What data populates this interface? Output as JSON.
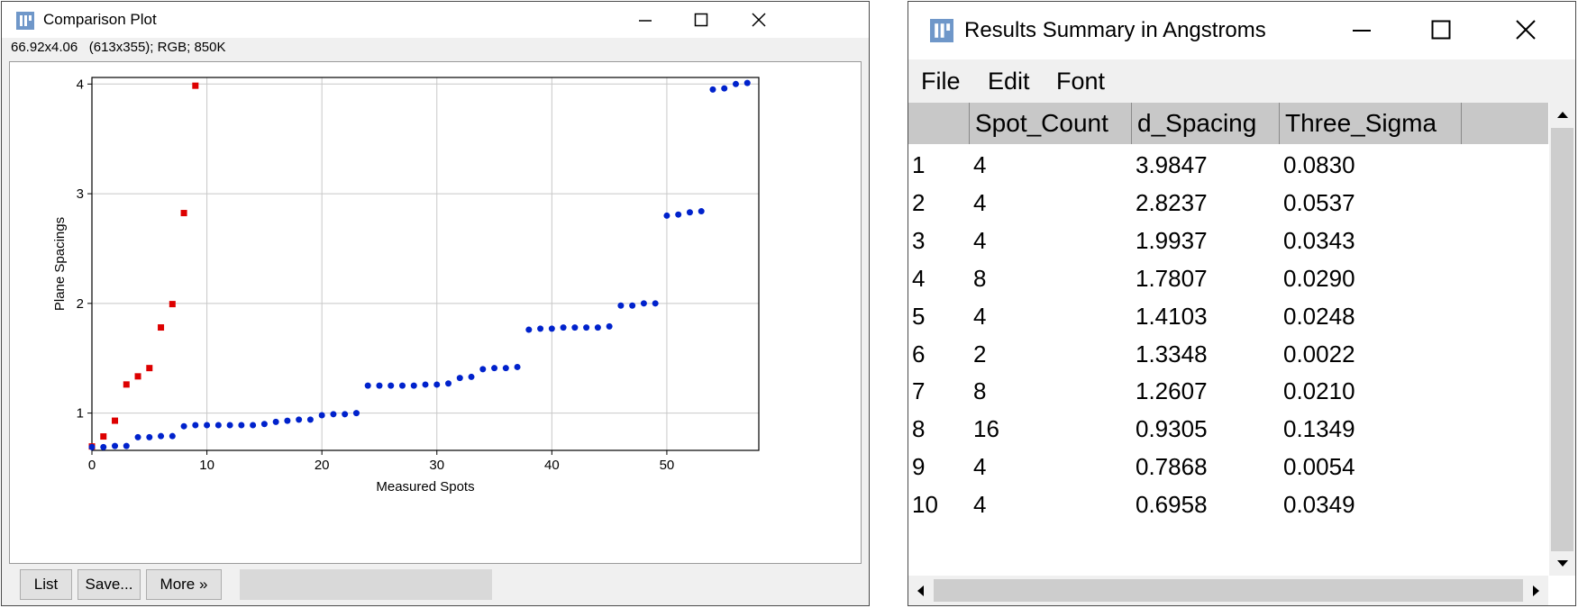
{
  "plot_window": {
    "title": "Comparison Plot",
    "info": "66.92x4.06   (613x355); RGB; 850K",
    "buttons": {
      "list": "List",
      "save": "Save...",
      "more": "More »"
    }
  },
  "results_window": {
    "title": "Results Summary in Angstroms",
    "menu": [
      "File",
      "Edit",
      "Font"
    ],
    "columns": [
      "",
      "Spot_Count",
      "d_Spacing",
      "Three_Sigma"
    ],
    "rows": [
      [
        "1",
        "4",
        "3.9847",
        "0.0830"
      ],
      [
        "2",
        "4",
        "2.8237",
        "0.0537"
      ],
      [
        "3",
        "4",
        "1.9937",
        "0.0343"
      ],
      [
        "4",
        "8",
        "1.7807",
        "0.0290"
      ],
      [
        "5",
        "4",
        "1.4103",
        "0.0248"
      ],
      [
        "6",
        "2",
        "1.3348",
        "0.0022"
      ],
      [
        "7",
        "8",
        "1.2607",
        "0.0210"
      ],
      [
        "8",
        "16",
        "0.9305",
        "0.1349"
      ],
      [
        "9",
        "4",
        "0.7868",
        "0.0054"
      ],
      [
        "10",
        "4",
        "0.6958",
        "0.0349"
      ]
    ]
  },
  "colors": {
    "red_series": "#dd0000",
    "blue_series": "#0022cc"
  },
  "chart_data": {
    "type": "scatter",
    "title": "",
    "xlabel": "Measured Spots",
    "ylabel": "Plane Spacings",
    "xlim": [
      0,
      58
    ],
    "ylim": [
      0.66,
      4.06
    ],
    "x_ticks": [
      0,
      10,
      20,
      30,
      40,
      50
    ],
    "y_ticks": [
      1,
      2,
      3,
      4
    ],
    "grid": true,
    "series": [
      {
        "marker": "square",
        "x": [
          0,
          1,
          2,
          3,
          4,
          5,
          6,
          7,
          8,
          9
        ],
        "y": [
          0.6958,
          0.7868,
          0.9305,
          1.2607,
          1.3348,
          1.4103,
          1.7807,
          1.9937,
          2.8237,
          3.9847
        ]
      },
      {
        "marker": "circle",
        "x": [
          0,
          1,
          2,
          3,
          4,
          5,
          6,
          7,
          8,
          9,
          10,
          11,
          12,
          13,
          14,
          15,
          16,
          17,
          18,
          19,
          20,
          21,
          22,
          23,
          24,
          25,
          26,
          27,
          28,
          29,
          30,
          31,
          32,
          33,
          34,
          35,
          36,
          37,
          38,
          39,
          40,
          41,
          42,
          43,
          44,
          45,
          46,
          47,
          48,
          49,
          50,
          51,
          52,
          53,
          54,
          55,
          56,
          57
        ],
        "y": [
          0.69,
          0.69,
          0.7,
          0.7,
          0.78,
          0.78,
          0.79,
          0.79,
          0.88,
          0.89,
          0.89,
          0.89,
          0.89,
          0.89,
          0.89,
          0.9,
          0.92,
          0.93,
          0.94,
          0.94,
          0.98,
          0.99,
          0.99,
          1.0,
          1.25,
          1.25,
          1.25,
          1.25,
          1.25,
          1.26,
          1.26,
          1.27,
          1.32,
          1.33,
          1.4,
          1.41,
          1.41,
          1.42,
          1.76,
          1.77,
          1.77,
          1.78,
          1.78,
          1.78,
          1.78,
          1.79,
          1.98,
          1.98,
          2.0,
          2.0,
          2.8,
          2.81,
          2.83,
          2.84,
          3.95,
          3.96,
          4.0,
          4.01
        ]
      }
    ]
  }
}
